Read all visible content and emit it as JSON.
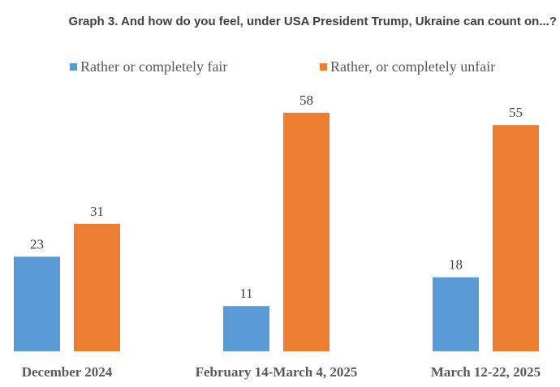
{
  "chart_data": {
    "type": "bar",
    "title": "Graph 3. And how do you feel, under USA President Trump, Ukraine can count on...?",
    "categories": [
      "December 2024",
      "February 14-March 4, 2025",
      "March 12-22, 2025"
    ],
    "series": [
      {
        "name": "Rather or completely fair",
        "color": "#5B9BD5",
        "values": [
          23,
          11,
          18
        ]
      },
      {
        "name": "Rather, or completely unfair",
        "color": "#ED7D31",
        "values": [
          31,
          58,
          55
        ]
      }
    ],
    "xlabel": "",
    "ylabel": "",
    "ylim": [
      0,
      60
    ],
    "grid": false,
    "legend": "top"
  }
}
